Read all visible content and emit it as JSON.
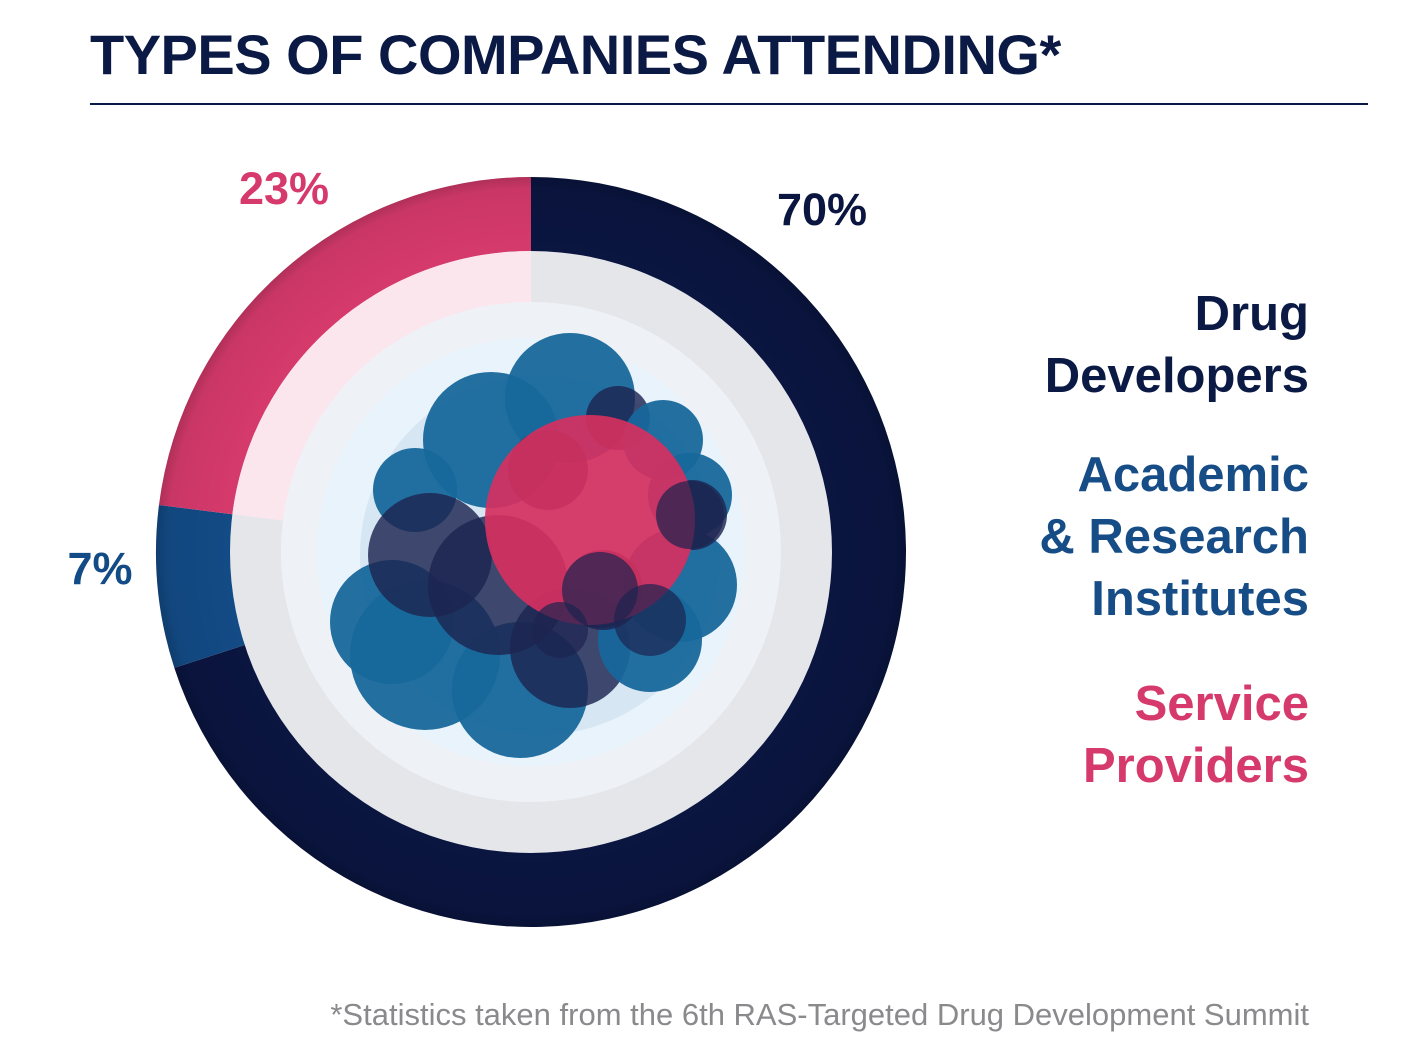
{
  "title": "TYPES OF COMPANIES ATTENDING*",
  "footnote": "*Statistics taken from the 6th RAS-Targeted Drug Development Summit",
  "colors": {
    "drug_developers": "#0a1540",
    "academic": "#134b86",
    "service": "#d63a6c",
    "service_light": "#fbe6ee",
    "inner_ring": "#e4e6ea",
    "core": "#e8f3fb",
    "bubble_blue": "#17679b",
    "bubble_dark": "#1c2450",
    "bubble_pink": "#d5305f"
  },
  "legend": {
    "drug": [
      "Drug",
      "Developers"
    ],
    "academic": [
      "Academic",
      "& Research",
      "Institutes"
    ],
    "service": [
      "Service",
      "Providers"
    ]
  },
  "chart_data": {
    "type": "pie",
    "title": "TYPES OF COMPANIES ATTENDING*",
    "categories": [
      "Drug Developers",
      "Academic & Research Institutes",
      "Service Providers"
    ],
    "values": [
      70,
      7,
      23
    ],
    "labels": [
      "70%",
      "7%",
      "23%"
    ],
    "start": "12 o'clock",
    "direction": "clockwise"
  }
}
